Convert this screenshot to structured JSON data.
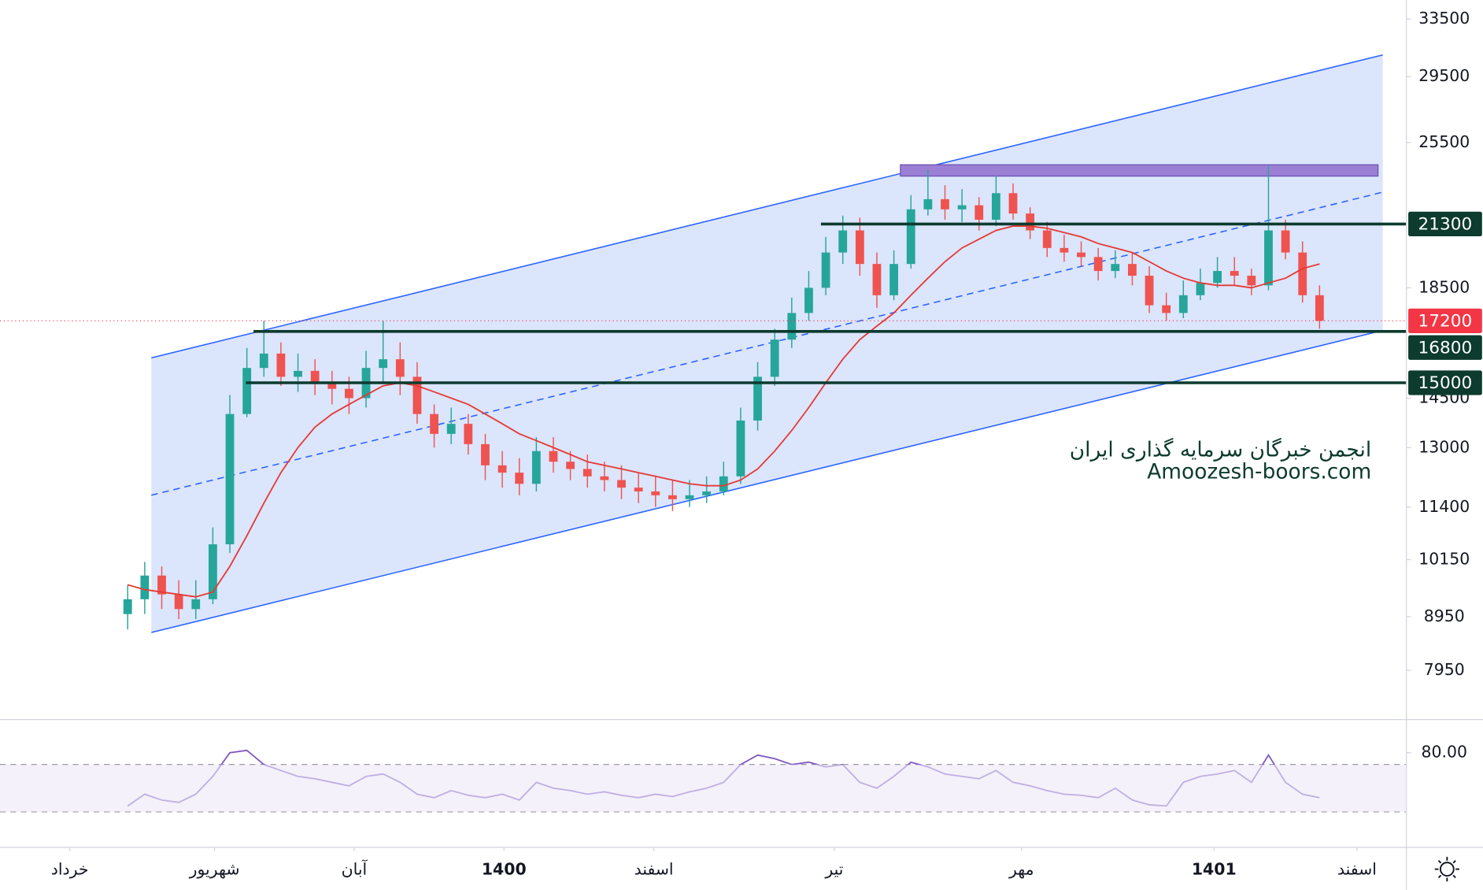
{
  "chart_data": {
    "type": "candlestick",
    "scale": "log",
    "ylim": [
      7130,
      34930
    ],
    "yticks": [
      33500,
      29500,
      25500,
      18500,
      14500,
      13000,
      11400,
      10150,
      8950,
      7950
    ],
    "xlim": [
      -7.5,
      75.1
    ],
    "xticks": [
      {
        "value": -3.4,
        "label": "خرداد"
      },
      {
        "value": 5.1,
        "label": "شهریور"
      },
      {
        "value": 13.3,
        "label": "آبان"
      },
      {
        "value": 22.1,
        "label": "1400"
      },
      {
        "value": 30.9,
        "label": "اسفند"
      },
      {
        "value": 41.5,
        "label": "تیر"
      },
      {
        "value": 52.5,
        "label": "مهر"
      },
      {
        "value": 63.8,
        "label": "1401"
      },
      {
        "value": 72.2,
        "label": "اسفند"
      }
    ],
    "open": [
      9000,
      9300,
      9800,
      9400,
      9100,
      9300,
      10500,
      14000,
      15500,
      16000,
      15200,
      15400,
      15000,
      14800,
      14500,
      15500,
      15800,
      15200,
      14000,
      13400,
      13700,
      13100,
      12500,
      12300,
      12000,
      12900,
      12600,
      12400,
      12200,
      12100,
      11900,
      11800,
      11700,
      11600,
      11700,
      11800,
      12200,
      13800,
      15200,
      16500,
      17500,
      18500,
      20000,
      21000,
      19500,
      18200,
      19500,
      22000,
      22500,
      22000,
      22200,
      21500,
      22800,
      21800,
      21000,
      20200,
      20000,
      19800,
      19200,
      19500,
      19000,
      17800,
      17500,
      18200,
      18700,
      19200,
      19000,
      18600,
      21000,
      20000,
      18200
    ],
    "high": [
      9600,
      10100,
      10000,
      9700,
      9700,
      10900,
      14600,
      16200,
      17200,
      16400,
      16000,
      15800,
      15400,
      15200,
      16100,
      17200,
      16400,
      15700,
      14300,
      14200,
      14000,
      13400,
      12900,
      12700,
      13300,
      13300,
      12900,
      12800,
      12600,
      12500,
      12300,
      12200,
      12100,
      12100,
      12200,
      12600,
      14200,
      15700,
      16900,
      18100,
      19200,
      20700,
      21700,
      21600,
      20000,
      20100,
      22700,
      24000,
      23200,
      23000,
      22600,
      23700,
      23300,
      22100,
      21400,
      20800,
      20500,
      20200,
      20100,
      20000,
      19400,
      18300,
      18800,
      19300,
      19800,
      19800,
      19300,
      24200,
      21500,
      20500,
      18600
    ],
    "low": [
      8700,
      9000,
      9100,
      8900,
      8900,
      9200,
      10300,
      13900,
      15200,
      14900,
      14700,
      14600,
      14300,
      14000,
      14200,
      15000,
      14600,
      13700,
      13000,
      13100,
      12800,
      12100,
      11900,
      11700,
      11800,
      12300,
      12100,
      11900,
      11800,
      11600,
      11500,
      11400,
      11300,
      11400,
      11500,
      11700,
      12000,
      13500,
      14900,
      16200,
      17200,
      18200,
      19500,
      19000,
      17700,
      18000,
      19300,
      21700,
      21500,
      21400,
      21000,
      21200,
      21500,
      20600,
      19800,
      19600,
      19400,
      18800,
      18900,
      18600,
      17500,
      17200,
      17300,
      18000,
      18500,
      18600,
      18200,
      18400,
      19700,
      17900,
      16900
    ],
    "close": [
      9300,
      9800,
      9400,
      9100,
      9300,
      10500,
      14000,
      15500,
      16000,
      15200,
      15400,
      15000,
      14800,
      14500,
      15500,
      15800,
      15200,
      14000,
      13400,
      13700,
      13100,
      12500,
      12300,
      12000,
      12900,
      12600,
      12400,
      12200,
      12100,
      11900,
      11800,
      11700,
      11600,
      11700,
      11800,
      12200,
      13800,
      15200,
      16500,
      17500,
      18500,
      20000,
      21000,
      19500,
      18200,
      19500,
      22000,
      22500,
      22000,
      22200,
      21500,
      22800,
      21800,
      21000,
      20200,
      20000,
      19800,
      19200,
      19500,
      19000,
      17800,
      17500,
      18200,
      18700,
      19200,
      19000,
      18600,
      21000,
      20000,
      18200,
      17200
    ],
    "up_color": "#26a69a",
    "down_color": "#ef5350",
    "ma": {
      "color": "#e53935",
      "values": [
        9600,
        9500,
        9450,
        9400,
        9350,
        9450,
        10000,
        10700,
        11500,
        12300,
        13000,
        13600,
        14000,
        14300,
        14600,
        14900,
        15000,
        14900,
        14700,
        14500,
        14300,
        14000,
        13700,
        13400,
        13200,
        13000,
        12800,
        12600,
        12500,
        12400,
        12300,
        12200,
        12100,
        12000,
        11950,
        11950,
        12100,
        12400,
        12900,
        13500,
        14200,
        15000,
        15800,
        16500,
        17000,
        17500,
        18200,
        18900,
        19600,
        20200,
        20600,
        21000,
        21200,
        21200,
        21100,
        20900,
        20700,
        20400,
        20200,
        20000,
        19600,
        19200,
        18900,
        18700,
        18600,
        18600,
        18500,
        18700,
        18900,
        19300,
        19500
      ]
    },
    "levels": [
      21300,
      16800,
      15000
    ],
    "level_color": "#0d3b2e",
    "last_price": 17200,
    "last_color": "#f23645",
    "rsi": {
      "color": "#7e57c2",
      "ylim": [
        0,
        100
      ],
      "yticks": [
        {
          "value": 80,
          "label": "80.00"
        }
      ],
      "bands": [
        70,
        30
      ],
      "values": [
        35,
        45,
        40,
        38,
        45,
        60,
        80,
        82,
        70,
        65,
        60,
        58,
        55,
        52,
        60,
        62,
        55,
        45,
        42,
        48,
        44,
        42,
        45,
        40,
        55,
        50,
        48,
        45,
        47,
        44,
        42,
        45,
        43,
        47,
        50,
        55,
        70,
        78,
        75,
        70,
        72,
        68,
        70,
        55,
        50,
        60,
        72,
        68,
        62,
        60,
        58,
        65,
        55,
        52,
        48,
        45,
        44,
        42,
        50,
        40,
        36,
        35,
        55,
        60,
        62,
        65,
        55,
        78,
        55,
        45,
        42
      ]
    },
    "watermark": [
      "انجمن خبرگان سرمایه گذاری ایران",
      "Amoozesh-boors.com"
    ]
  }
}
